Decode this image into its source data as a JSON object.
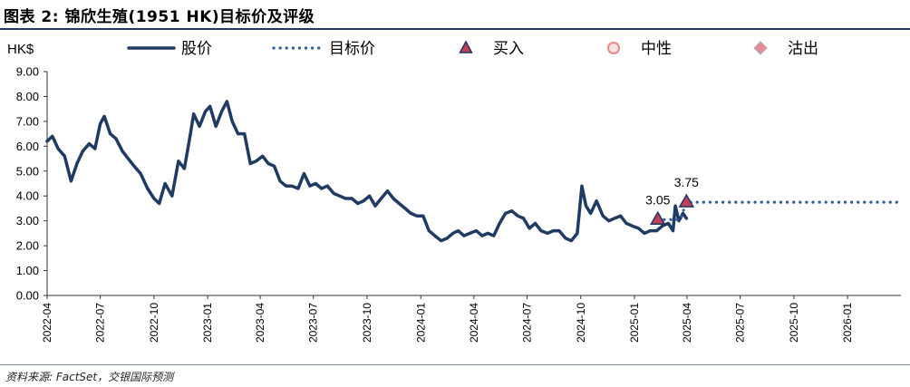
{
  "header": {
    "title": "图表 2: 锦欣生殖(1951 HK)目标价及评级"
  },
  "footer": {
    "source": "资料来源: FactSet，交银国际预测"
  },
  "chart_data": {
    "type": "line",
    "title": "图表 2: 锦欣生殖(1951 HK)目标价及评级",
    "ylabel": "HK$",
    "xlabel": "",
    "ylim": [
      0,
      9
    ],
    "grid": false,
    "legend_position": "top",
    "y_ticks": [
      "0.00",
      "1.00",
      "2.00",
      "3.00",
      "4.00",
      "5.00",
      "6.00",
      "7.00",
      "8.00",
      "9.00"
    ],
    "x_ticks": [
      "2022-04",
      "2022-07",
      "2022-10",
      "2023-01",
      "2023-04",
      "2023-07",
      "2023-10",
      "2024-01",
      "2024-04",
      "2024-07",
      "2024-10",
      "2025-01",
      "2025-04",
      "2025-07",
      "2025-10",
      "2026-01"
    ],
    "legend": [
      {
        "key": "price",
        "label": "股价",
        "color": "#1f3a63",
        "icon": "solid-line-icon"
      },
      {
        "key": "target",
        "label": "目标价",
        "color": "#2e5c9e",
        "icon": "dotted-line-icon"
      },
      {
        "key": "buy",
        "label": "买入",
        "color": "#c0405a",
        "icon": "triangle-icon"
      },
      {
        "key": "neutral",
        "label": "中性",
        "color": "#e58a8a",
        "icon": "circle-icon"
      },
      {
        "key": "sell",
        "label": "沽出",
        "color": "#e58a9a",
        "icon": "diamond-icon"
      }
    ],
    "series": [
      {
        "name": "股价",
        "color": "#1f3a63",
        "points": [
          [
            "2022-04-01",
            6.2
          ],
          [
            "2022-04-10",
            6.4
          ],
          [
            "2022-04-20",
            5.9
          ],
          [
            "2022-05-01",
            5.6
          ],
          [
            "2022-05-12",
            4.6
          ],
          [
            "2022-05-22",
            5.3
          ],
          [
            "2022-06-01",
            5.8
          ],
          [
            "2022-06-12",
            6.1
          ],
          [
            "2022-06-22",
            5.9
          ],
          [
            "2022-07-01",
            6.9
          ],
          [
            "2022-07-08",
            7.2
          ],
          [
            "2022-07-18",
            6.5
          ],
          [
            "2022-07-28",
            6.3
          ],
          [
            "2022-08-08",
            5.8
          ],
          [
            "2022-08-18",
            5.5
          ],
          [
            "2022-08-28",
            5.2
          ],
          [
            "2022-09-08",
            4.9
          ],
          [
            "2022-09-20",
            4.3
          ],
          [
            "2022-10-01",
            3.9
          ],
          [
            "2022-10-10",
            3.7
          ],
          [
            "2022-10-20",
            4.5
          ],
          [
            "2022-11-01",
            4.0
          ],
          [
            "2022-11-12",
            5.4
          ],
          [
            "2022-11-22",
            5.1
          ],
          [
            "2022-12-01",
            6.3
          ],
          [
            "2022-12-08",
            7.3
          ],
          [
            "2022-12-18",
            6.8
          ],
          [
            "2022-12-28",
            7.4
          ],
          [
            "2023-01-05",
            7.6
          ],
          [
            "2023-01-15",
            6.8
          ],
          [
            "2023-01-25",
            7.4
          ],
          [
            "2023-02-03",
            7.8
          ],
          [
            "2023-02-12",
            7.0
          ],
          [
            "2023-02-22",
            6.5
          ],
          [
            "2023-03-05",
            6.5
          ],
          [
            "2023-03-15",
            5.3
          ],
          [
            "2023-03-25",
            5.4
          ],
          [
            "2023-04-05",
            5.6
          ],
          [
            "2023-04-15",
            5.3
          ],
          [
            "2023-04-25",
            5.2
          ],
          [
            "2023-05-05",
            4.6
          ],
          [
            "2023-05-15",
            4.4
          ],
          [
            "2023-05-25",
            4.4
          ],
          [
            "2023-06-05",
            4.3
          ],
          [
            "2023-06-15",
            4.9
          ],
          [
            "2023-06-25",
            4.4
          ],
          [
            "2023-07-05",
            4.5
          ],
          [
            "2023-07-15",
            4.3
          ],
          [
            "2023-07-25",
            4.4
          ],
          [
            "2023-08-05",
            4.1
          ],
          [
            "2023-08-15",
            4.0
          ],
          [
            "2023-08-25",
            3.9
          ],
          [
            "2023-09-05",
            3.9
          ],
          [
            "2023-09-15",
            3.7
          ],
          [
            "2023-09-25",
            3.8
          ],
          [
            "2023-10-05",
            4.0
          ],
          [
            "2023-10-15",
            3.6
          ],
          [
            "2023-10-25",
            3.9
          ],
          [
            "2023-11-05",
            4.2
          ],
          [
            "2023-11-15",
            3.9
          ],
          [
            "2023-11-25",
            3.7
          ],
          [
            "2023-12-05",
            3.5
          ],
          [
            "2023-12-15",
            3.3
          ],
          [
            "2023-12-25",
            3.2
          ],
          [
            "2024-01-05",
            3.2
          ],
          [
            "2024-01-15",
            2.6
          ],
          [
            "2024-01-25",
            2.4
          ],
          [
            "2024-02-05",
            2.2
          ],
          [
            "2024-02-15",
            2.3
          ],
          [
            "2024-02-25",
            2.5
          ],
          [
            "2024-03-05",
            2.6
          ],
          [
            "2024-03-15",
            2.4
          ],
          [
            "2024-03-25",
            2.5
          ],
          [
            "2024-04-05",
            2.6
          ],
          [
            "2024-04-15",
            2.4
          ],
          [
            "2024-04-25",
            2.5
          ],
          [
            "2024-05-05",
            2.4
          ],
          [
            "2024-05-15",
            2.9
          ],
          [
            "2024-05-25",
            3.3
          ],
          [
            "2024-06-05",
            3.4
          ],
          [
            "2024-06-15",
            3.2
          ],
          [
            "2024-06-25",
            3.1
          ],
          [
            "2024-07-05",
            2.7
          ],
          [
            "2024-07-15",
            2.9
          ],
          [
            "2024-07-25",
            2.6
          ],
          [
            "2024-08-05",
            2.5
          ],
          [
            "2024-08-15",
            2.6
          ],
          [
            "2024-08-25",
            2.6
          ],
          [
            "2024-09-05",
            2.3
          ],
          [
            "2024-09-15",
            2.2
          ],
          [
            "2024-09-25",
            2.5
          ],
          [
            "2024-10-03",
            4.4
          ],
          [
            "2024-10-10",
            3.6
          ],
          [
            "2024-10-18",
            3.3
          ],
          [
            "2024-10-28",
            3.8
          ],
          [
            "2024-11-08",
            3.2
          ],
          [
            "2024-11-18",
            3.0
          ],
          [
            "2024-11-28",
            3.1
          ],
          [
            "2024-12-08",
            3.2
          ],
          [
            "2024-12-18",
            2.9
          ],
          [
            "2024-12-28",
            2.8
          ],
          [
            "2025-01-08",
            2.7
          ],
          [
            "2025-01-18",
            2.5
          ],
          [
            "2025-01-28",
            2.6
          ],
          [
            "2025-02-08",
            2.6
          ],
          [
            "2025-02-18",
            2.8
          ],
          [
            "2025-02-28",
            2.9
          ],
          [
            "2025-03-08",
            2.6
          ],
          [
            "2025-03-12",
            3.6
          ],
          [
            "2025-03-18",
            3.0
          ],
          [
            "2025-03-25",
            3.3
          ],
          [
            "2025-03-31",
            3.1
          ]
        ]
      },
      {
        "name": "目标价",
        "color": "#2e5c9e",
        "points": [
          [
            "2025-02-10",
            3.05
          ],
          [
            "2025-03-20",
            3.05
          ],
          [
            "2025-03-31",
            3.75
          ],
          [
            "2026-03-31",
            3.75
          ]
        ]
      }
    ],
    "markers": [
      {
        "type": "buy",
        "date": "2025-02-10",
        "value": 3.05,
        "label": "3.05"
      },
      {
        "type": "buy",
        "date": "2025-03-31",
        "value": 3.75,
        "label": "3.75"
      }
    ]
  }
}
